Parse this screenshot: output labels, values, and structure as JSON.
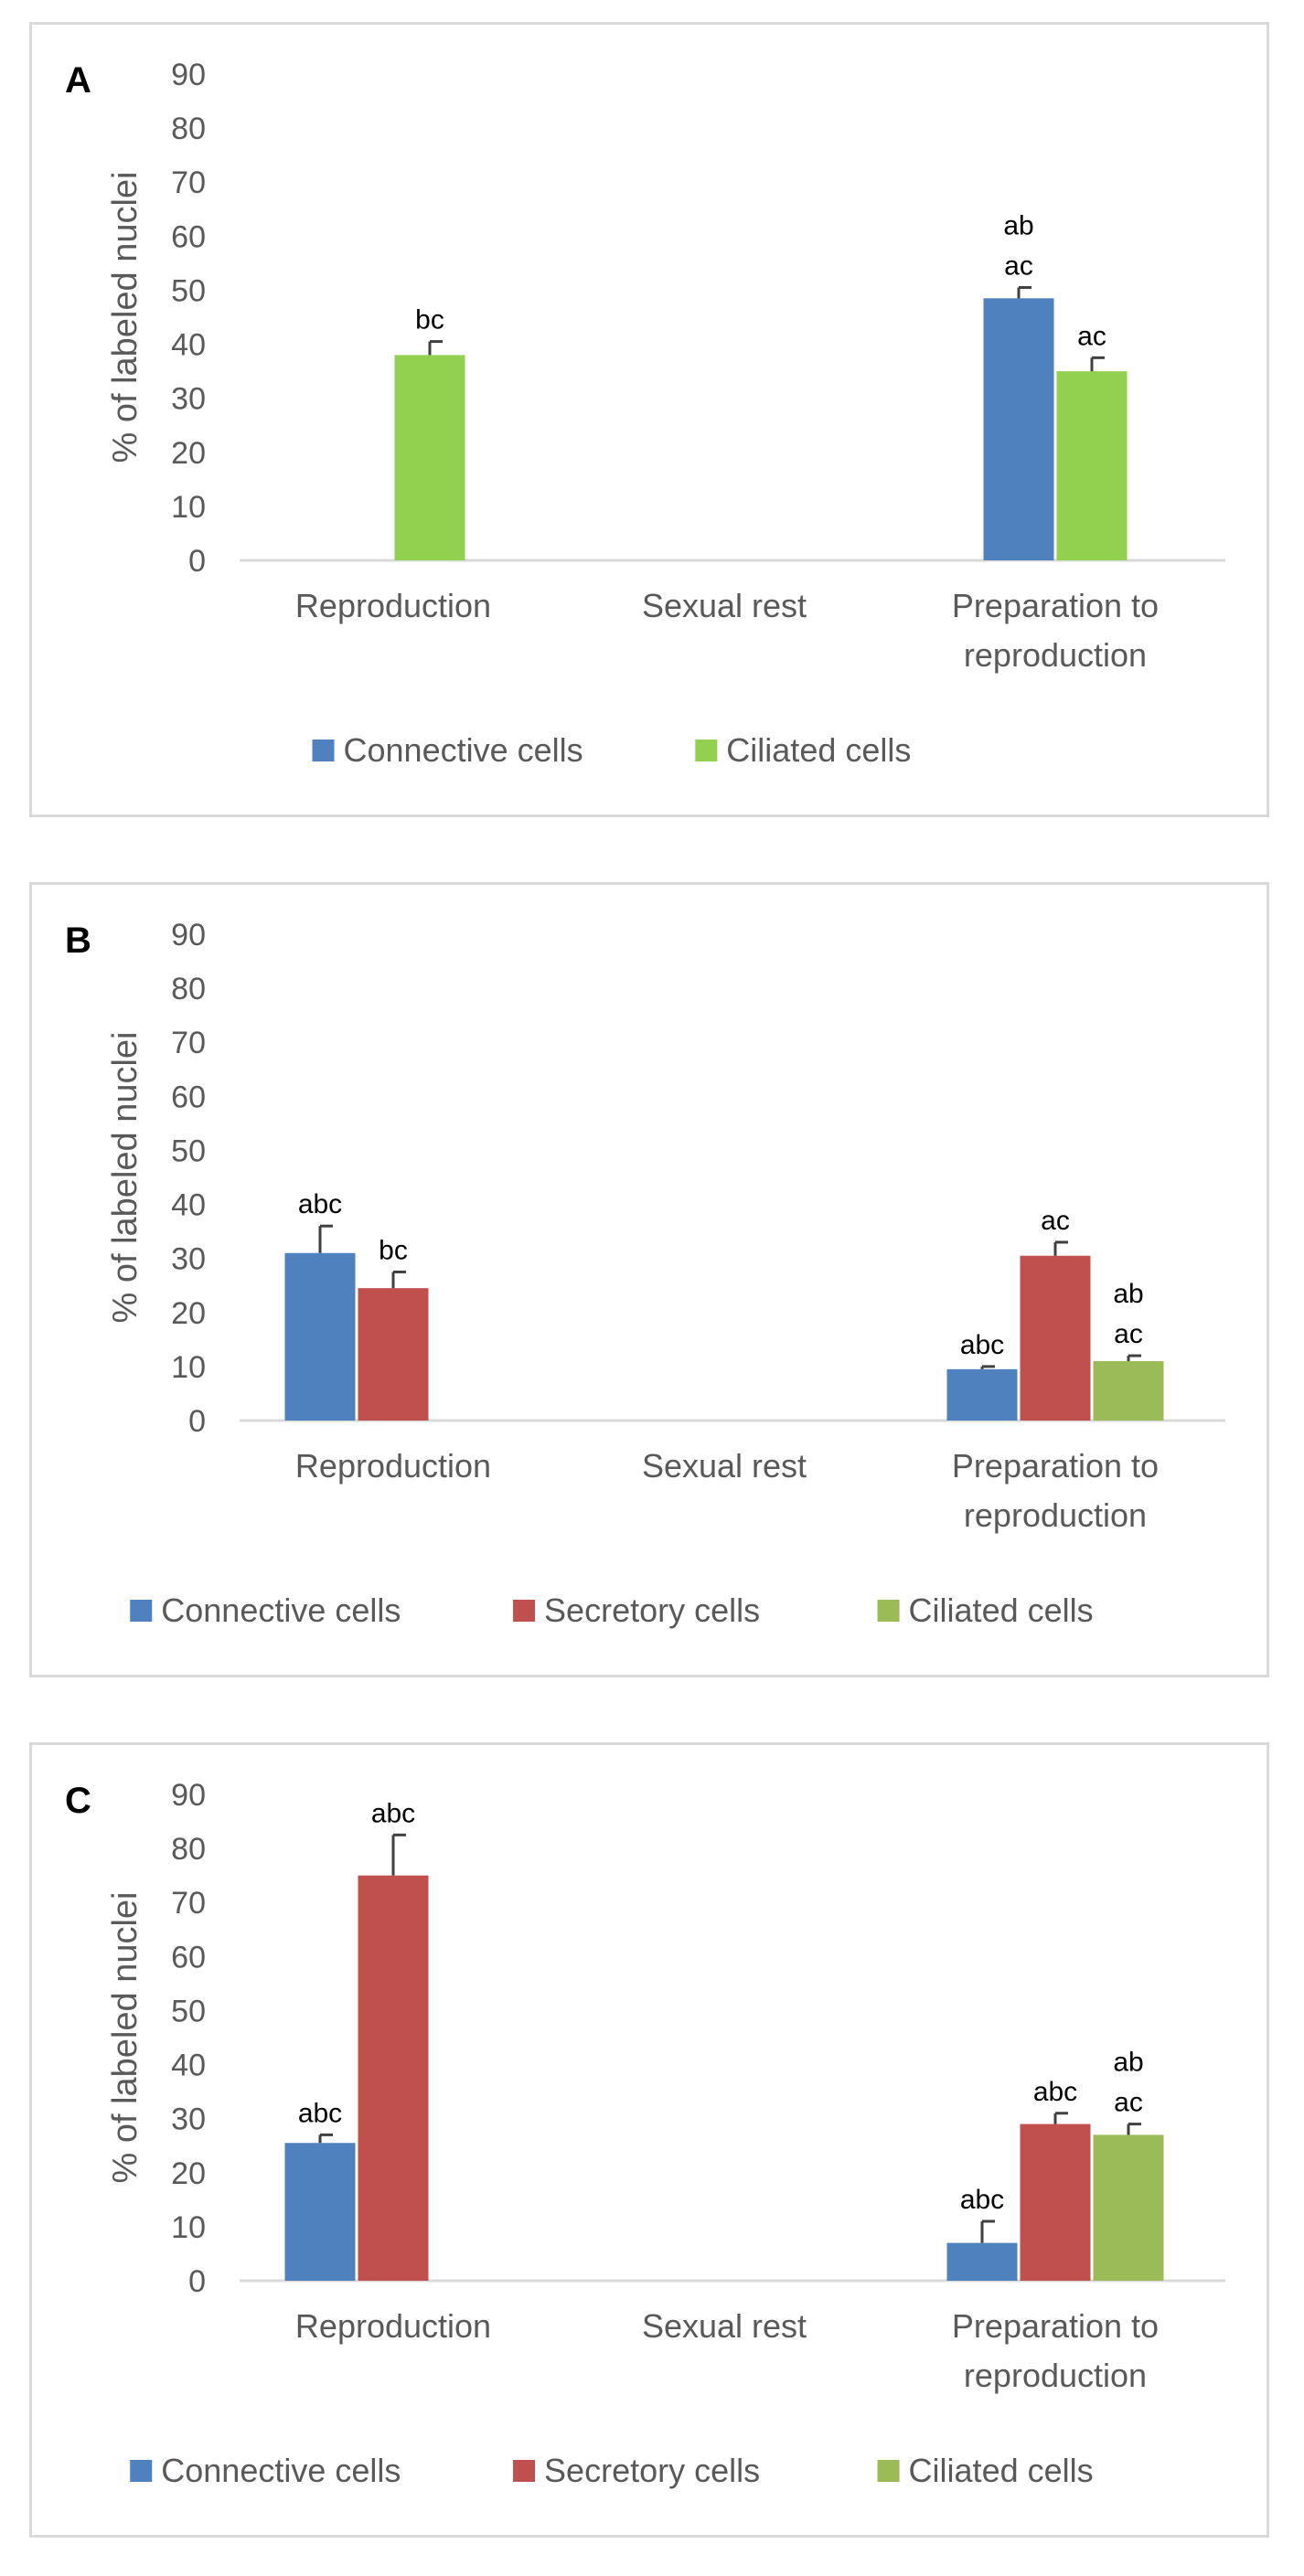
{
  "colors": {
    "Connective cells": "#4e81bd",
    "Secretory cells": "#c0504d",
    "Ciliated cells A": "#92d050",
    "Ciliated cells": "#9bbb59",
    "axis": "#d9d9d9",
    "error": "#404040"
  },
  "chart_data": [
    {
      "panel": "A",
      "type": "bar",
      "ylabel": "% of labeled nuclei",
      "ylim": [
        0,
        90
      ],
      "yticks": [
        0,
        10,
        20,
        30,
        40,
        50,
        60,
        70,
        80,
        90
      ],
      "categories": [
        "Reproduction",
        "Sexual rest",
        "Preparation to reproduction"
      ],
      "category_lines": [
        [
          "Reproduction"
        ],
        [
          "Sexual rest"
        ],
        [
          "Preparation to",
          "reproduction"
        ]
      ],
      "series": [
        {
          "name": "Connective cells",
          "color_key": "Connective cells",
          "values": [
            null,
            null,
            48.5
          ],
          "errors": [
            null,
            null,
            2
          ],
          "labels": [
            null,
            null,
            [
              "ab",
              "ac"
            ]
          ]
        },
        {
          "name": "Ciliated cells",
          "color_key": "Ciliated cells A",
          "values": [
            38,
            null,
            35
          ],
          "errors": [
            2.5,
            null,
            2.5
          ],
          "labels": [
            [
              "bc"
            ],
            null,
            [
              "ac"
            ]
          ]
        }
      ],
      "legend": [
        "Connective cells",
        "Ciliated cells"
      ],
      "legend_position": "bottom"
    },
    {
      "panel": "B",
      "type": "bar",
      "ylabel": "% of labeled nuclei",
      "ylim": [
        0,
        90
      ],
      "yticks": [
        0,
        10,
        20,
        30,
        40,
        50,
        60,
        70,
        80,
        90
      ],
      "categories": [
        "Reproduction",
        "Sexual rest",
        "Preparation to reproduction"
      ],
      "category_lines": [
        [
          "Reproduction"
        ],
        [
          "Sexual rest"
        ],
        [
          "Preparation to",
          "reproduction"
        ]
      ],
      "series": [
        {
          "name": "Connective cells",
          "color_key": "Connective cells",
          "values": [
            31,
            null,
            9.5
          ],
          "errors": [
            5,
            null,
            0.5
          ],
          "labels": [
            [
              "abc"
            ],
            null,
            [
              "abc"
            ]
          ]
        },
        {
          "name": "Secretory cells",
          "color_key": "Secretory cells",
          "values": [
            24.5,
            null,
            30.5
          ],
          "errors": [
            3,
            null,
            2.5
          ],
          "labels": [
            [
              "bc"
            ],
            null,
            [
              "ac"
            ]
          ]
        },
        {
          "name": "Ciliated cells",
          "color_key": "Ciliated cells",
          "values": [
            null,
            null,
            11
          ],
          "errors": [
            null,
            null,
            1
          ],
          "labels": [
            null,
            null,
            [
              "ab",
              "ac"
            ]
          ]
        }
      ],
      "legend": [
        "Connective cells",
        "Secretory cells",
        "Ciliated cells"
      ],
      "legend_position": "bottom"
    },
    {
      "panel": "C",
      "type": "bar",
      "ylabel": "% of labeled nuclei",
      "ylim": [
        0,
        90
      ],
      "yticks": [
        0,
        10,
        20,
        30,
        40,
        50,
        60,
        70,
        80,
        90
      ],
      "categories": [
        "Reproduction",
        "Sexual rest",
        "Preparation to reproduction"
      ],
      "category_lines": [
        [
          "Reproduction"
        ],
        [
          "Sexual rest"
        ],
        [
          "Preparation to",
          "reproduction"
        ]
      ],
      "series": [
        {
          "name": "Connective cells",
          "color_key": "Connective cells",
          "values": [
            25.5,
            null,
            7
          ],
          "errors": [
            1.5,
            null,
            4
          ],
          "labels": [
            [
              "abc"
            ],
            null,
            [
              "abc"
            ]
          ]
        },
        {
          "name": "Secretory cells",
          "color_key": "Secretory cells",
          "values": [
            75,
            null,
            29
          ],
          "errors": [
            7.5,
            null,
            2
          ],
          "labels": [
            [
              "abc"
            ],
            null,
            [
              "abc"
            ]
          ]
        },
        {
          "name": "Ciliated cells",
          "color_key": "Ciliated cells",
          "values": [
            null,
            null,
            27
          ],
          "errors": [
            null,
            null,
            2
          ],
          "labels": [
            null,
            null,
            [
              "ab",
              "ac"
            ]
          ]
        }
      ],
      "legend": [
        "Connective cells",
        "Secretory cells",
        "Ciliated cells"
      ],
      "legend_position": "bottom"
    }
  ]
}
